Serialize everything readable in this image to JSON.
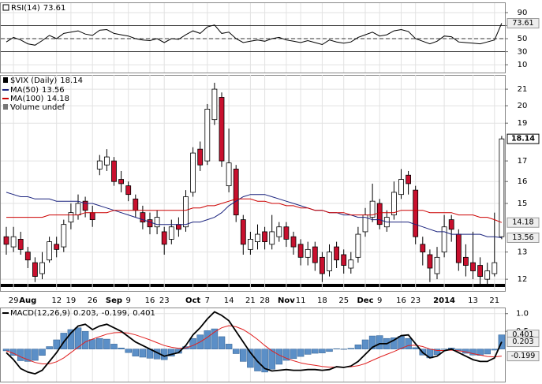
{
  "chart_data": [
    {
      "type": "line",
      "title": "RSI(14)",
      "series": [
        {
          "name": "RSI(14)",
          "color": "#000000",
          "values": [
            45,
            52,
            48,
            42,
            40,
            47,
            55,
            50,
            58,
            60,
            62,
            57,
            55,
            63,
            64,
            58,
            56,
            54,
            50,
            48,
            47,
            50,
            44,
            50,
            49,
            56,
            62,
            58,
            68,
            71,
            58,
            60,
            50,
            44,
            46,
            48,
            46,
            50,
            52,
            48,
            46,
            44,
            47,
            44,
            41,
            48,
            45,
            43,
            45,
            52,
            56,
            60,
            54,
            56,
            62,
            64,
            61,
            50,
            46,
            42,
            46,
            54,
            53,
            45,
            44,
            43,
            42,
            45,
            48,
            73.61
          ]
        }
      ],
      "ylim": [
        -2,
        104.5
      ],
      "yticks": [
        10,
        30,
        50,
        70,
        90
      ],
      "reference_lines": [
        30,
        50,
        70
      ],
      "grid": true
    },
    {
      "type": "candlestick",
      "title": "$VIX (Daily)",
      "volume_label": "Volume undef",
      "log_scale": true,
      "categories": [
        null,
        "29",
        null,
        "Aug",
        null,
        null,
        null,
        "12",
        null,
        "19",
        null,
        null,
        "26",
        null,
        null,
        "Sep",
        null,
        "9",
        null,
        null,
        "16",
        null,
        "23",
        null,
        null,
        null,
        "Oct",
        null,
        "7",
        null,
        null,
        "14",
        null,
        null,
        "21",
        null,
        "28",
        null,
        null,
        "Nov",
        null,
        "11",
        null,
        null,
        "18",
        null,
        null,
        "25",
        null,
        null,
        "Dec",
        null,
        "9",
        null,
        null,
        "16",
        null,
        "23",
        null,
        null,
        null,
        "2014",
        null,
        null,
        null,
        "13",
        null,
        null,
        "21",
        null
      ],
      "open": [
        13.6,
        13.2,
        13.5,
        13.0,
        12.6,
        12.2,
        12.7,
        13.3,
        13.2,
        14.2,
        14.5,
        15.1,
        14.6,
        16.6,
        16.8,
        17.0,
        16.1,
        15.8,
        15.2,
        14.6,
        14.3,
        14.0,
        13.8,
        13.5,
        14.1,
        14.0,
        15.5,
        17.6,
        17.0,
        19.2,
        20.5,
        15.8,
        16.6,
        14.3,
        13.1,
        13.4,
        13.8,
        13.3,
        13.6,
        14.0,
        13.6,
        13.3,
        12.8,
        13.2,
        12.8,
        12.3,
        13.2,
        12.9,
        12.4,
        12.8,
        13.8,
        14.4,
        15.0,
        14.0,
        14.5,
        15.4,
        16.3,
        15.6,
        13.3,
        12.9,
        12.2,
        13.0,
        14.3,
        13.7,
        12.8,
        12.6,
        12.5,
        12.0,
        12.2,
        13.6
      ],
      "high": [
        14.0,
        14.0,
        13.8,
        13.2,
        12.8,
        13.0,
        13.6,
        13.6,
        14.3,
        15.0,
        15.4,
        15.3,
        14.9,
        17.3,
        17.6,
        17.2,
        16.5,
        16.0,
        15.4,
        14.9,
        14.6,
        14.7,
        14.0,
        14.3,
        14.4,
        15.6,
        17.7,
        18.0,
        20.1,
        21.4,
        20.8,
        18.7,
        16.8,
        14.5,
        13.8,
        14.1,
        14.0,
        14.5,
        14.2,
        14.2,
        13.8,
        13.5,
        13.4,
        13.4,
        13.0,
        13.3,
        13.4,
        13.1,
        13.0,
        14.0,
        14.8,
        15.9,
        15.2,
        14.7,
        16.0,
        16.6,
        16.5,
        15.8,
        13.6,
        13.1,
        13.2,
        14.5,
        14.5,
        13.9,
        13.3,
        13.8,
        12.8,
        12.6,
        14.6,
        18.3
      ],
      "low": [
        12.9,
        13.0,
        12.9,
        12.4,
        11.9,
        12.0,
        12.6,
        12.8,
        13.0,
        13.9,
        14.3,
        14.4,
        14.0,
        16.3,
        16.5,
        15.8,
        15.5,
        15.1,
        14.4,
        13.9,
        13.7,
        13.7,
        12.9,
        13.3,
        13.6,
        13.8,
        15.3,
        16.5,
        16.8,
        18.9,
        16.7,
        15.5,
        14.2,
        12.9,
        12.9,
        13.1,
        13.1,
        13.1,
        13.4,
        13.2,
        12.9,
        12.5,
        12.5,
        12.3,
        11.9,
        12.1,
        12.4,
        12.2,
        12.2,
        12.6,
        13.6,
        14.2,
        13.9,
        13.8,
        14.3,
        15.2,
        15.4,
        13.3,
        12.5,
        11.9,
        12.0,
        12.8,
        13.4,
        12.3,
        12.1,
        12.0,
        11.8,
        11.8,
        12.1,
        13.5
      ],
      "close": [
        13.3,
        13.6,
        13.1,
        12.7,
        12.1,
        12.6,
        13.4,
        13.1,
        14.1,
        14.6,
        15.0,
        14.7,
        14.3,
        17.0,
        17.2,
        16.0,
        15.9,
        15.4,
        14.7,
        14.2,
        14.0,
        14.4,
        13.3,
        14.0,
        13.9,
        15.3,
        17.4,
        16.8,
        19.8,
        21.0,
        17.0,
        16.9,
        14.5,
        13.3,
        13.5,
        13.7,
        13.4,
        13.8,
        14.0,
        13.5,
        13.2,
        12.8,
        13.1,
        12.6,
        12.2,
        13.0,
        12.7,
        12.5,
        12.7,
        13.7,
        14.5,
        15.1,
        14.1,
        14.4,
        15.5,
        16.1,
        15.9,
        13.6,
        13.0,
        12.4,
        12.8,
        14.0,
        13.9,
        12.6,
        12.5,
        12.3,
        12.1,
        12.3,
        12.6,
        18.14
      ],
      "series": [
        {
          "name": "MA(50)",
          "color": "#1a237e",
          "values": [
            15.5,
            15.4,
            15.3,
            15.3,
            15.2,
            15.2,
            15.2,
            15.1,
            15.1,
            15.1,
            15.1,
            15.0,
            15.0,
            14.9,
            14.8,
            14.7,
            14.6,
            14.5,
            14.4,
            14.3,
            14.2,
            14.1,
            14.1,
            14.1,
            14.1,
            14.1,
            14.2,
            14.2,
            14.3,
            14.4,
            14.6,
            14.9,
            15.1,
            15.3,
            15.4,
            15.4,
            15.4,
            15.3,
            15.2,
            15.1,
            15.0,
            14.9,
            14.8,
            14.7,
            14.7,
            14.6,
            14.6,
            14.5,
            14.5,
            14.4,
            14.4,
            14.3,
            14.3,
            14.2,
            14.2,
            14.2,
            14.2,
            14.1,
            14.0,
            13.9,
            13.8,
            13.8,
            13.7,
            13.7,
            13.7,
            13.7,
            13.7,
            13.6,
            13.6,
            13.56
          ]
        },
        {
          "name": "MA(100)",
          "color": "#cc0000",
          "values": [
            14.4,
            14.4,
            14.4,
            14.4,
            14.4,
            14.4,
            14.5,
            14.5,
            14.5,
            14.5,
            14.5,
            14.6,
            14.6,
            14.6,
            14.6,
            14.7,
            14.7,
            14.7,
            14.7,
            14.7,
            14.7,
            14.7,
            14.7,
            14.7,
            14.7,
            14.7,
            14.8,
            14.8,
            14.9,
            14.9,
            15.0,
            15.1,
            15.2,
            15.2,
            15.2,
            15.1,
            15.1,
            15.0,
            15.0,
            14.9,
            14.9,
            14.8,
            14.8,
            14.7,
            14.7,
            14.6,
            14.6,
            14.6,
            14.5,
            14.5,
            14.5,
            14.5,
            14.6,
            14.6,
            14.6,
            14.7,
            14.7,
            14.7,
            14.7,
            14.6,
            14.6,
            14.6,
            14.6,
            14.5,
            14.5,
            14.5,
            14.4,
            14.4,
            14.3,
            14.18
          ]
        }
      ],
      "ylim": [
        11.62,
        21.9
      ],
      "yticks": [
        12,
        13,
        15,
        16,
        17,
        19,
        20,
        21
      ],
      "grid": true
    },
    {
      "type": "macd",
      "title": "MACD(12,26,9)",
      "series": [
        {
          "name": "MACD",
          "color": "#000000",
          "values": [
            -0.1,
            -0.3,
            -0.55,
            -0.65,
            -0.7,
            -0.6,
            -0.35,
            -0.1,
            0.2,
            0.45,
            0.65,
            0.7,
            0.55,
            0.65,
            0.7,
            0.6,
            0.5,
            0.35,
            0.2,
            0.1,
            0.0,
            -0.1,
            -0.2,
            -0.15,
            -0.1,
            0.1,
            0.4,
            0.6,
            0.85,
            1.05,
            0.95,
            0.8,
            0.5,
            0.2,
            -0.1,
            -0.35,
            -0.55,
            -0.62,
            -0.6,
            -0.58,
            -0.6,
            -0.6,
            -0.58,
            -0.58,
            -0.6,
            -0.58,
            -0.5,
            -0.52,
            -0.48,
            -0.35,
            -0.15,
            0.05,
            0.15,
            0.15,
            0.25,
            0.38,
            0.4,
            0.15,
            -0.1,
            -0.25,
            -0.2,
            -0.05,
            0.0,
            -0.1,
            -0.2,
            -0.3,
            -0.35,
            -0.35,
            -0.25,
            0.203
          ]
        },
        {
          "name": "Signal",
          "color": "#e02020",
          "values": [
            -0.05,
            -0.12,
            -0.22,
            -0.3,
            -0.38,
            -0.42,
            -0.42,
            -0.36,
            -0.25,
            -0.1,
            0.05,
            0.2,
            0.28,
            0.35,
            0.42,
            0.46,
            0.47,
            0.45,
            0.4,
            0.33,
            0.26,
            0.18,
            0.1,
            0.05,
            0.02,
            0.03,
            0.1,
            0.2,
            0.33,
            0.48,
            0.6,
            0.66,
            0.63,
            0.55,
            0.42,
            0.27,
            0.1,
            -0.05,
            -0.17,
            -0.26,
            -0.33,
            -0.39,
            -0.43,
            -0.46,
            -0.49,
            -0.51,
            -0.51,
            -0.51,
            -0.5,
            -0.47,
            -0.41,
            -0.32,
            -0.23,
            -0.15,
            -0.07,
            0.02,
            0.1,
            0.11,
            0.07,
            0.0,
            -0.04,
            -0.04,
            -0.03,
            -0.05,
            -0.08,
            -0.13,
            -0.17,
            -0.21,
            -0.22,
            -0.199
          ]
        },
        {
          "name": "Histogram",
          "color": "#5b8fc7",
          "values": [
            -0.05,
            -0.18,
            -0.33,
            -0.35,
            -0.32,
            -0.18,
            0.07,
            0.26,
            0.45,
            0.55,
            0.6,
            0.5,
            0.27,
            0.3,
            0.28,
            0.14,
            0.03,
            -0.1,
            -0.2,
            -0.23,
            -0.26,
            -0.28,
            -0.3,
            -0.2,
            -0.12,
            0.07,
            0.3,
            0.4,
            0.52,
            0.57,
            0.35,
            0.14,
            -0.13,
            -0.35,
            -0.52,
            -0.62,
            -0.65,
            -0.57,
            -0.43,
            -0.32,
            -0.27,
            -0.21,
            -0.15,
            -0.12,
            -0.11,
            -0.07,
            0.01,
            -0.01,
            0.02,
            0.12,
            0.26,
            0.37,
            0.38,
            0.3,
            0.32,
            0.36,
            0.3,
            0.04,
            -0.17,
            -0.25,
            -0.16,
            -0.01,
            0.03,
            -0.05,
            -0.12,
            -0.17,
            -0.18,
            -0.14,
            -0.03,
            0.401
          ]
        }
      ],
      "legend_labels": [
        "0.203,",
        "-0.199,",
        "0.401"
      ],
      "ylim": [
        -0.92,
        1.15
      ],
      "yticks": [
        {
          "value": 1.0,
          "label": "1.0"
        },
        {
          "value": 0.5,
          "label": "0.5"
        }
      ],
      "grid": true
    }
  ]
}
